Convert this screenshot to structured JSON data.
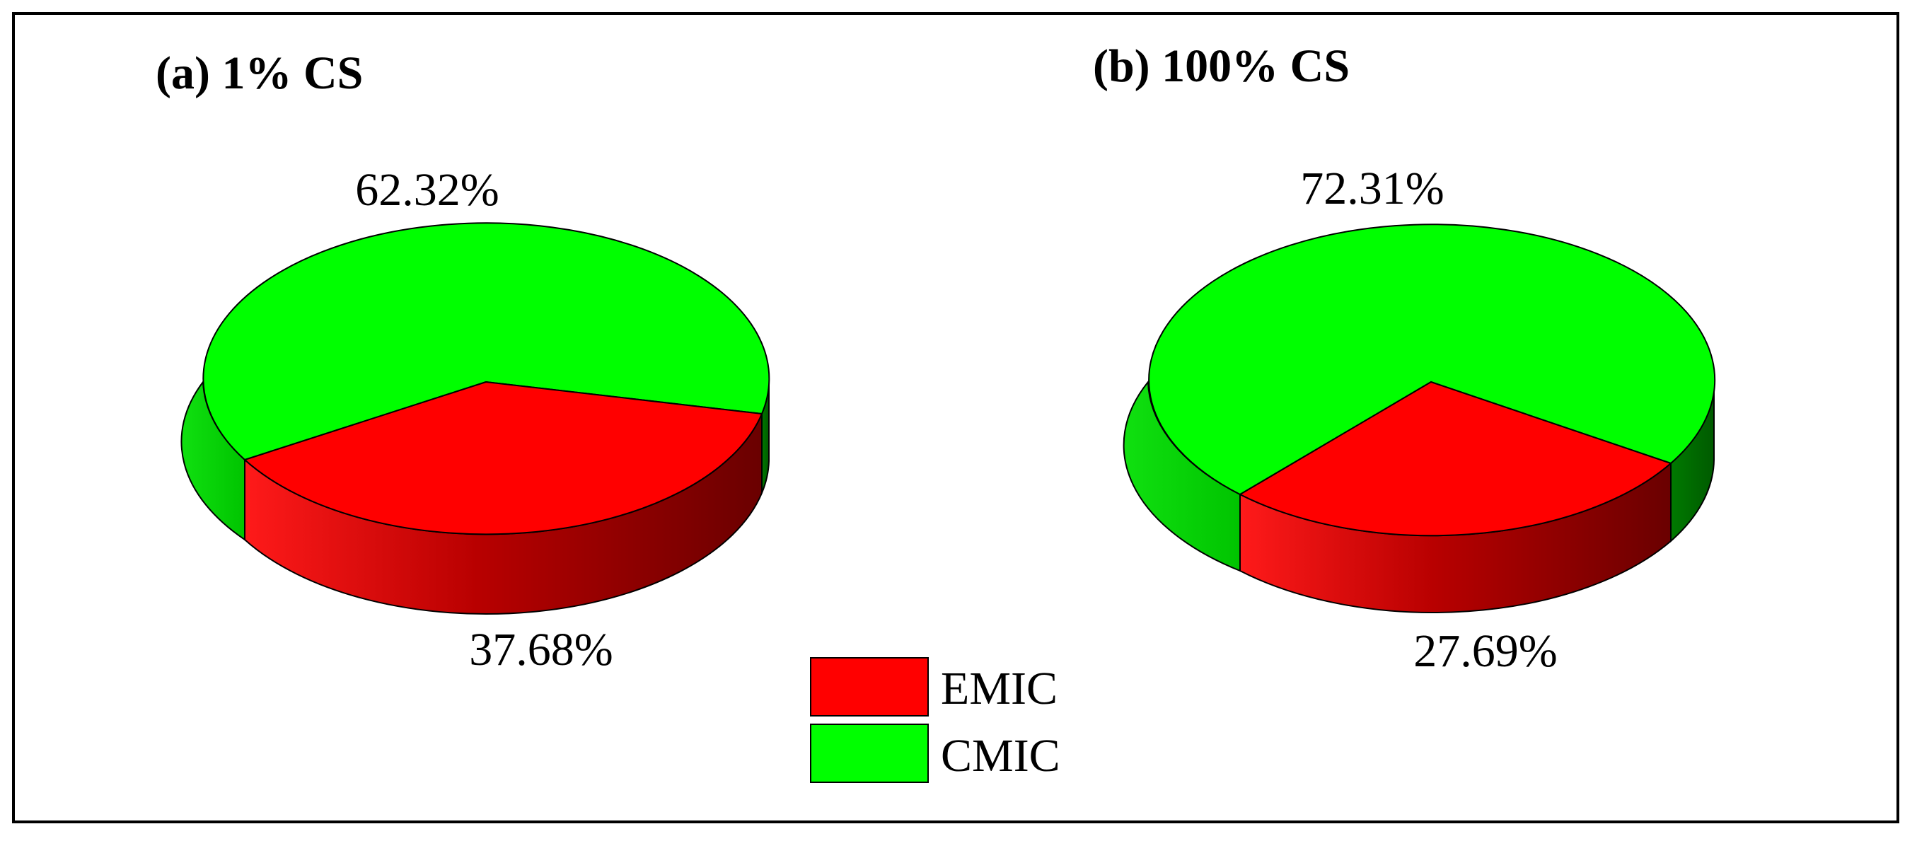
{
  "chart_data": [
    {
      "type": "pie",
      "title": "(a) 1% CS",
      "labels": [
        "EMIC",
        "CMIC"
      ],
      "values": [
        37.68,
        62.32
      ],
      "value_labels": [
        "37.68%",
        "62.32%"
      ],
      "colors": [
        "#ff0000",
        "#00ff00"
      ],
      "style": "3d"
    },
    {
      "type": "pie",
      "title": "(b) 100% CS",
      "labels": [
        "EMIC",
        "CMIC"
      ],
      "values": [
        27.69,
        72.31
      ],
      "value_labels": [
        "27.69%",
        "72.31%"
      ],
      "colors": [
        "#ff0000",
        "#00ff00"
      ],
      "style": "3d"
    }
  ],
  "legend": {
    "placement": "bottom-center",
    "items": [
      {
        "label": "EMIC",
        "color": "#ff0000"
      },
      {
        "label": "CMIC",
        "color": "#00ff00"
      }
    ]
  }
}
